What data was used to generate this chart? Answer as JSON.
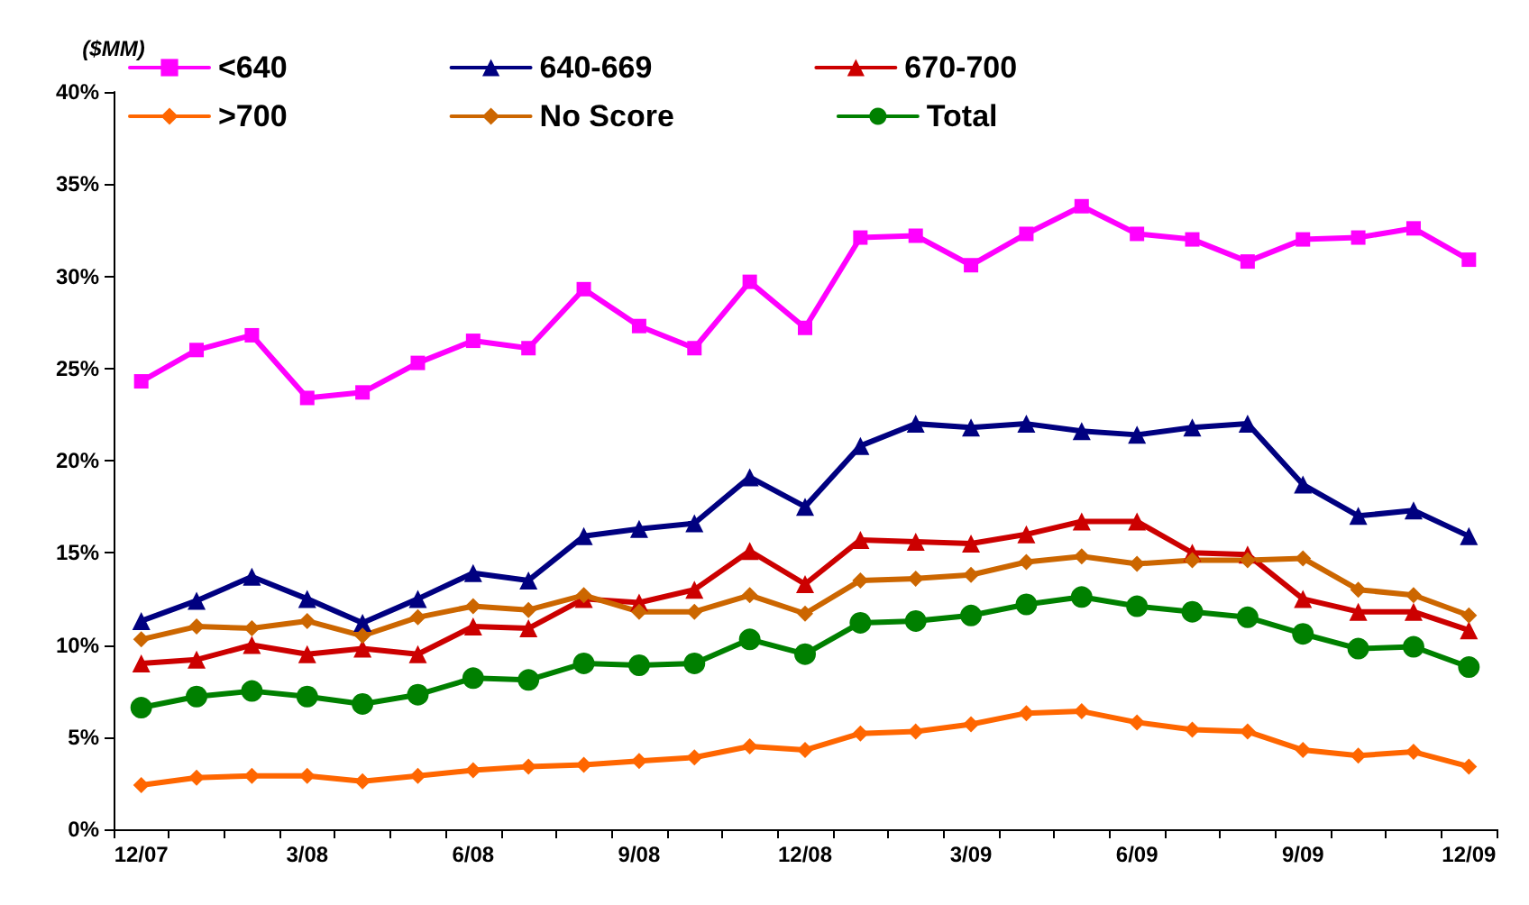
{
  "chart_data": {
    "type": "line",
    "ylabel": "($MM)",
    "categories": [
      "12/07",
      null,
      null,
      "3/08",
      null,
      null,
      "6/08",
      null,
      null,
      "9/08",
      null,
      null,
      "12/08",
      null,
      null,
      "3/09",
      null,
      null,
      "6/09",
      null,
      null,
      "9/09",
      null,
      null,
      "12/09"
    ],
    "series": [
      {
        "name": "<640",
        "color": "#ff00ff",
        "marker": "square",
        "values": [
          24.3,
          26.0,
          26.8,
          23.4,
          23.7,
          25.3,
          26.5,
          26.1,
          29.3,
          27.3,
          26.1,
          29.7,
          27.2,
          32.1,
          32.2,
          30.6,
          32.3,
          33.8,
          32.3,
          32.0,
          30.8,
          32.0,
          32.1,
          32.6,
          30.9
        ]
      },
      {
        "name": "640-669",
        "color": "#000080",
        "marker": "triangle",
        "values": [
          11.3,
          12.4,
          13.7,
          12.5,
          11.2,
          12.5,
          13.9,
          13.5,
          15.9,
          16.3,
          16.6,
          19.1,
          17.5,
          20.8,
          22.0,
          21.8,
          22.0,
          21.6,
          21.4,
          21.8,
          22.0,
          18.7,
          17.0,
          17.3,
          15.9
        ]
      },
      {
        "name": "670-700",
        "color": "#cc0000",
        "marker": "triangle",
        "values": [
          9.0,
          9.2,
          10.0,
          9.5,
          9.8,
          9.5,
          11.0,
          10.9,
          12.5,
          12.3,
          13.0,
          15.1,
          13.3,
          15.7,
          15.6,
          15.5,
          16.0,
          16.7,
          16.7,
          15.0,
          14.9,
          12.5,
          11.8,
          11.8,
          10.8
        ]
      },
      {
        "name": ">700",
        "color": "#ff6600",
        "marker": "diamond",
        "values": [
          2.4,
          2.8,
          2.9,
          2.9,
          2.6,
          2.9,
          3.2,
          3.4,
          3.5,
          3.7,
          3.9,
          4.5,
          4.3,
          5.2,
          5.3,
          5.7,
          6.3,
          6.4,
          5.8,
          5.4,
          5.3,
          4.3,
          4.0,
          4.2,
          3.4
        ]
      },
      {
        "name": "No Score",
        "color": "#cc6600",
        "marker": "diamond",
        "values": [
          10.3,
          11.0,
          10.9,
          11.3,
          10.5,
          11.5,
          12.1,
          11.9,
          12.7,
          11.8,
          11.8,
          12.7,
          11.7,
          13.5,
          13.6,
          13.8,
          14.5,
          14.8,
          14.4,
          14.6,
          14.6,
          14.7,
          13.0,
          12.7,
          11.6
        ]
      },
      {
        "name": "Total",
        "color": "#008000",
        "marker": "circle",
        "values": [
          6.6,
          7.2,
          7.5,
          7.2,
          6.8,
          7.3,
          8.2,
          8.1,
          9.0,
          8.9,
          9.0,
          10.3,
          9.5,
          11.2,
          11.3,
          11.6,
          12.2,
          12.6,
          12.1,
          11.8,
          11.5,
          10.6,
          9.8,
          9.9,
          8.8
        ]
      }
    ],
    "ylim": [
      0,
      40
    ],
    "yticks": [
      {
        "value": 0,
        "label": "0%"
      },
      {
        "value": 5,
        "label": "5%"
      },
      {
        "value": 10,
        "label": "10%"
      },
      {
        "value": 15,
        "label": "15%"
      },
      {
        "value": 20,
        "label": "20%"
      },
      {
        "value": 25,
        "label": "25%"
      },
      {
        "value": 30,
        "label": "30%"
      },
      {
        "value": 35,
        "label": "35%"
      },
      {
        "value": 40,
        "label": "40%"
      }
    ],
    "grid": false,
    "legend": "top",
    "line_style": "solid"
  }
}
